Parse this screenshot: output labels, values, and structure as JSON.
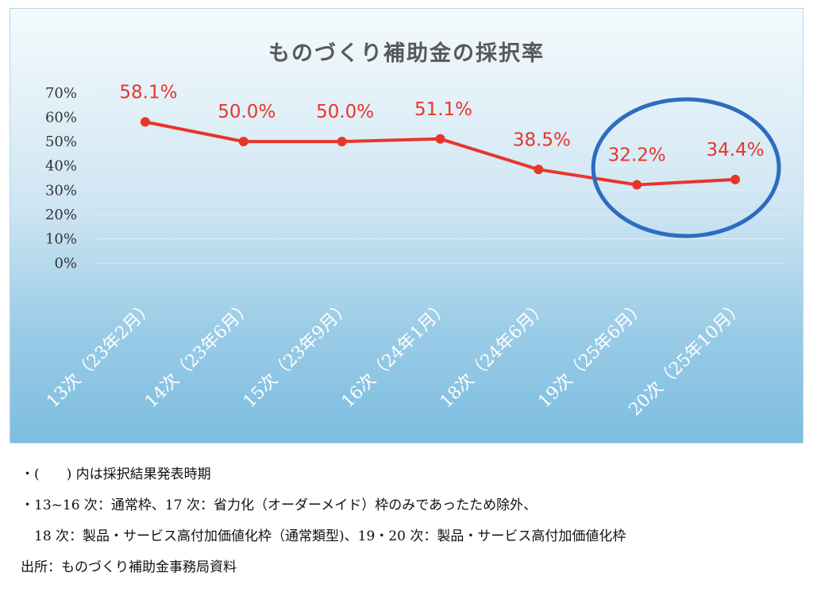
{
  "chart_data": {
    "type": "line",
    "title": "ものづくり補助金の採択率",
    "categories": [
      "13次（23年2月）",
      "14次（23年6月）",
      "15次（23年9月）",
      "16次（24年1月）",
      "18次（24年6月）",
      "19次（25年6月）",
      "20次（25年10月）"
    ],
    "series": [
      {
        "values": [
          58.1,
          50.0,
          50.0,
          51.1,
          38.5,
          32.2,
          34.4
        ],
        "data_labels": [
          "58.1%",
          "50.0%",
          "50.0%",
          "51.1%",
          "38.5%",
          "32.2%",
          "34.4%"
        ]
      }
    ],
    "y_ticks": [
      "0%",
      "10%",
      "20%",
      "30%",
      "40%",
      "50%",
      "60%",
      "70%"
    ],
    "ylim": [
      0,
      70
    ],
    "grid": true,
    "line_color": "#e8352b",
    "label_color": "#e8352b",
    "highlight_ellipse_color": "#2e6cc0",
    "highlighted_categories": [
      "19次（25年6月）",
      "20次（25年10月）"
    ]
  },
  "notes": {
    "line1": "・(　　) 内は採択結果発表時期",
    "line2": "・13~16 次：通常枠、17 次：省力化（オーダーメイド）枠のみであったため除外、",
    "line3": "　18 次：製品・サービス高付加価値化枠（通常類型)、19・20 次：製品・サービス高付加価値化枠",
    "line4": "出所：ものづくり補助金事務局資料"
  }
}
